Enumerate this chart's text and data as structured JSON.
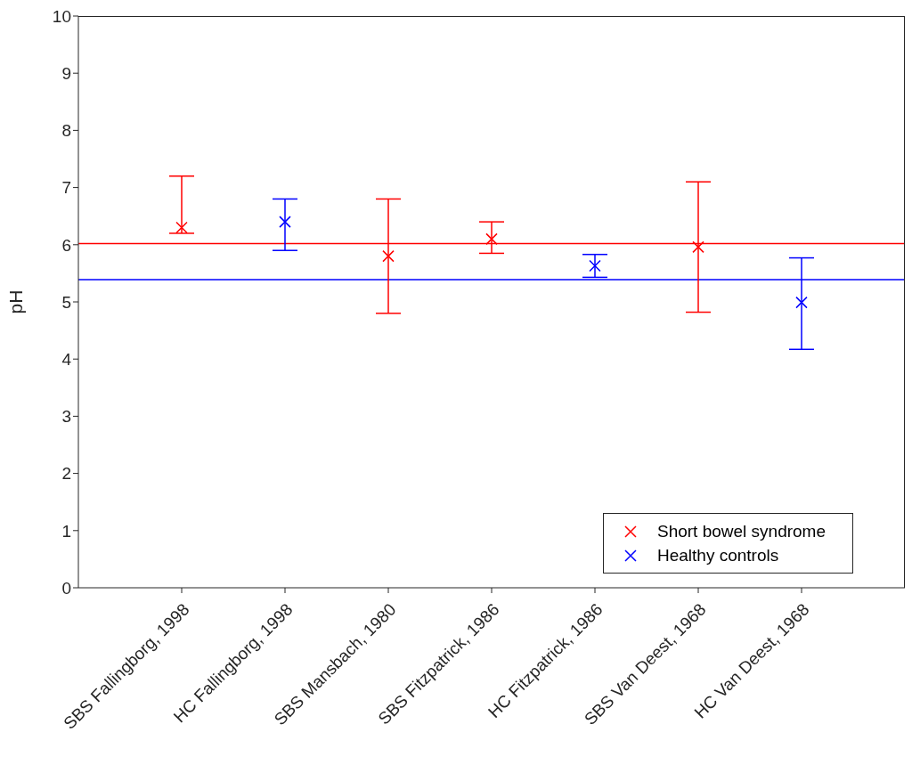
{
  "chart_data": {
    "type": "scatter",
    "ylabel": "pH",
    "categories": [
      "SBS Fallingborg, 1998",
      "HC Fallingborg, 1998",
      "SBS Mansbach, 1980",
      "SBS Fitzpatrick, 1986",
      "HC Fitzpatrick, 1986",
      "SBS Van Deest, 1968",
      "HC Van Deest, 1968"
    ],
    "series": [
      {
        "name": "Short bowel syndrome",
        "color": "#ff0000",
        "values": [
          6.3,
          null,
          5.8,
          6.1,
          null,
          5.96,
          null
        ],
        "errors": [
          [
            6.2,
            7.2
          ],
          null,
          [
            4.8,
            6.8
          ],
          [
            5.85,
            6.4
          ],
          null,
          [
            4.82,
            7.1
          ],
          null
        ]
      },
      {
        "name": "Healthy controls",
        "color": "#0000ff",
        "values": [
          null,
          6.4,
          null,
          null,
          5.63,
          null,
          4.99
        ],
        "errors": [
          null,
          [
            5.9,
            6.8
          ],
          null,
          null,
          [
            5.43,
            5.83
          ],
          null,
          [
            4.17,
            5.77
          ]
        ]
      }
    ],
    "ref_lines": [
      {
        "axis": "y",
        "value": 6.02,
        "color": "#ff0000"
      },
      {
        "axis": "y",
        "value": 5.39,
        "color": "#0000ff"
      }
    ],
    "ylim": [
      0,
      10
    ],
    "yticks": [
      0,
      1,
      2,
      3,
      4,
      5,
      6,
      7,
      8,
      9,
      10
    ],
    "grid": false,
    "legend": "bottom right",
    "marker": "cross"
  }
}
